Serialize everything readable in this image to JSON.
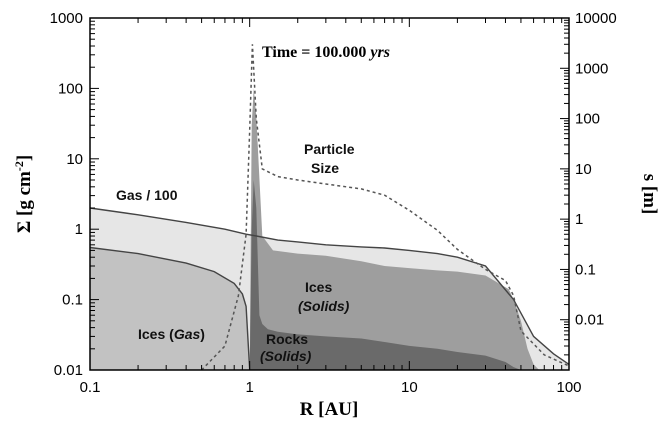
{
  "chart_data": {
    "type": "area",
    "title": "Time = 100.000 yrs",
    "title_parts": {
      "prefix": "Time = 100.000 ",
      "unit": "yrs"
    },
    "xlabel": "R [AU]",
    "ylabel_left": "Σ [g cm⁻²]",
    "ylabel_left_parts": {
      "main": "Σ [g cm",
      "sup": "-2",
      "end": "]"
    },
    "ylabel_right": "s [m]",
    "x_scale": "log",
    "y_scale_left": "log",
    "y_scale_right": "log",
    "xlim": [
      0.1,
      100
    ],
    "ylim_left": [
      0.01,
      1000
    ],
    "ylim_right": [
      0.001,
      10000
    ],
    "x_ticks": [
      "0.1",
      "1",
      "10",
      "100"
    ],
    "y_ticks_left": [
      "0.01",
      "0.1",
      "1",
      "10",
      "100",
      "1000"
    ],
    "y_ticks_right": [
      "0.01",
      "0.1",
      "1",
      "10",
      "100",
      "1000",
      "10000"
    ],
    "grid": false,
    "colors": {
      "ices_gas_fill": "#c2c2c2",
      "gas_fill": "#e6e6e6",
      "ices_solids_fill": "#9e9e9e",
      "rocks_solids_fill": "#6a6a6a",
      "line": "#444444",
      "particle_size_line": "#555555"
    },
    "series": [
      {
        "name": "Gas / 100",
        "axis": "left",
        "style": "solid-line-filled",
        "x": [
          0.1,
          0.2,
          0.4,
          0.7,
          0.95,
          1.1,
          1.5,
          2,
          3,
          5,
          7,
          10,
          15,
          20,
          30,
          45,
          60,
          80,
          100
        ],
        "y": [
          2.0,
          1.6,
          1.25,
          1.0,
          0.85,
          0.8,
          0.7,
          0.66,
          0.6,
          0.56,
          0.54,
          0.5,
          0.45,
          0.4,
          0.3,
          0.1,
          0.03,
          0.017,
          0.012
        ]
      },
      {
        "name": "Ices (Gas)",
        "axis": "left",
        "style": "solid-line-filled",
        "x": [
          0.1,
          0.2,
          0.4,
          0.6,
          0.8,
          0.9,
          0.95,
          1.0
        ],
        "y": [
          0.55,
          0.45,
          0.33,
          0.25,
          0.17,
          0.12,
          0.08,
          0.01
        ]
      },
      {
        "name": "Ices (Solids)",
        "axis": "left",
        "style": "filled",
        "x": [
          1.0,
          1.03,
          1.06,
          1.1,
          1.2,
          1.4,
          2,
          3,
          5,
          7,
          10,
          15,
          20,
          30,
          42,
          45,
          50,
          55,
          60,
          65
        ],
        "y": [
          0.01,
          30,
          100,
          40,
          0.8,
          0.5,
          0.45,
          0.42,
          0.35,
          0.3,
          0.28,
          0.26,
          0.25,
          0.22,
          0.14,
          0.1,
          0.05,
          0.02,
          0.012,
          0.01
        ]
      },
      {
        "name": "Rocks (Solids)",
        "axis": "left",
        "style": "filled",
        "x": [
          1.0,
          1.03,
          1.06,
          1.1,
          1.15,
          1.2,
          1.3,
          1.5,
          2,
          3,
          5,
          7,
          10,
          15,
          20,
          30,
          40,
          45,
          50
        ],
        "y": [
          0.01,
          1.0,
          5.0,
          2.0,
          0.06,
          0.045,
          0.038,
          0.035,
          0.032,
          0.03,
          0.028,
          0.025,
          0.022,
          0.02,
          0.018,
          0.016,
          0.013,
          0.011,
          0.01
        ]
      },
      {
        "name": "Particle Size",
        "axis": "right",
        "style": "dashed-line",
        "x": [
          0.5,
          0.7,
          0.85,
          0.95,
          1.0,
          1.04,
          1.1,
          1.2,
          1.5,
          2,
          3,
          5,
          7,
          10,
          15,
          20,
          30,
          40,
          45,
          50,
          70,
          100
        ],
        "y": [
          0.001,
          0.003,
          0.03,
          0.5,
          60,
          3000,
          100,
          10,
          7,
          6,
          5,
          4,
          3,
          1.5,
          0.6,
          0.25,
          0.1,
          0.06,
          0.03,
          0.006,
          0.002,
          0.0012
        ]
      }
    ],
    "annotations": {
      "gas": "Gas / 100",
      "particle_size_line1": "Particle",
      "particle_size_line2": "Size",
      "ices_solids_line1": "Ices",
      "ices_solids_line2": "(Solids)",
      "ices_gas_prefix": "Ices (",
      "ices_gas_italic": "Gas",
      "ices_gas_suffix": ")",
      "rocks_line1": "Rocks",
      "rocks_line2": "(Solids)"
    }
  }
}
